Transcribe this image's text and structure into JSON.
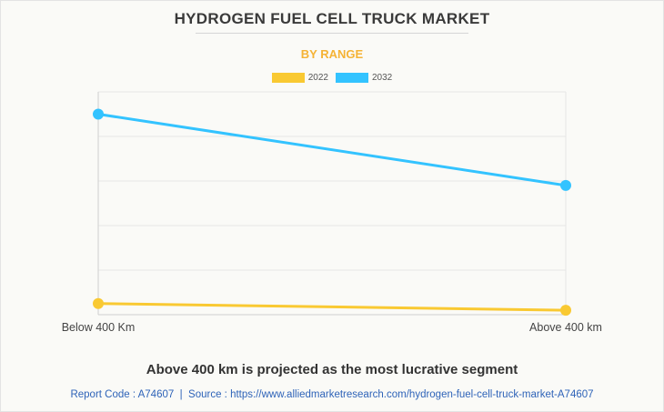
{
  "chart_data": {
    "type": "line",
    "title": "HYDROGEN FUEL CELL TRUCK MARKET",
    "subtitle": "BY RANGE",
    "categories": [
      "Below 400 Km",
      "Above 400 km"
    ],
    "series": [
      {
        "name": "2022",
        "color": "#f9c932",
        "values": [
          2.5,
          1.0
        ]
      },
      {
        "name": "2032",
        "color": "#33c3ff",
        "values": [
          45.0,
          29.0
        ]
      }
    ],
    "ylim": [
      0,
      50
    ],
    "grid": true,
    "legend_position": "top-center"
  },
  "caption": "Above 400 km is projected as the most lucrative segment",
  "source": {
    "report_code": "Report Code : A74607",
    "separator": "|",
    "source_text": "Source : https://www.alliedmarketresearch.com/hydrogen-fuel-cell-truck-market-A74607"
  }
}
